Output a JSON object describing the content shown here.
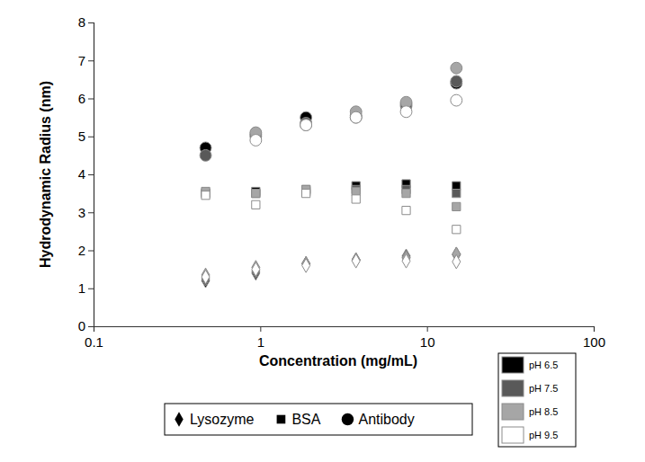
{
  "chart_data": {
    "type": "scatter",
    "log": "x",
    "grid": false,
    "legend": "bottom",
    "x_label": "Concentration (mg/mL)",
    "y_label": "Hydrodynamic Radius (nm)",
    "xlim": [
      0.1,
      100
    ],
    "xticks": [
      0.1,
      1,
      10,
      100
    ],
    "ylim": [
      0,
      8
    ],
    "yticks": [
      0,
      1,
      2,
      3,
      4,
      5,
      6,
      7,
      8
    ],
    "x": [
      0.47,
      0.94,
      1.88,
      3.75,
      7.5,
      15
    ],
    "groups": [
      {
        "name": "Lysozyme",
        "marker": "diamond",
        "series": [
          {
            "name": "pH 6.5",
            "color": "#000000",
            "values": [
              1.2,
              1.4,
              1.65,
              1.75,
              1.85,
              1.9
            ]
          },
          {
            "name": "pH 7.5",
            "color": "#595959",
            "values": [
              1.25,
              1.45,
              1.65,
              1.75,
              1.82,
              1.88
            ]
          },
          {
            "name": "pH 8.5",
            "color": "#a6a6a6",
            "values": [
              1.35,
              1.55,
              1.65,
              1.75,
              1.8,
              1.9
            ]
          },
          {
            "name": "pH 9.5",
            "color": "#ffffff",
            "values": [
              1.3,
              1.5,
              1.6,
              1.72,
              1.72,
              1.7
            ]
          }
        ]
      },
      {
        "name": "BSA",
        "marker": "square",
        "series": [
          {
            "name": "pH 6.5",
            "color": "#000000",
            "values": [
              3.5,
              3.55,
              3.6,
              3.7,
              3.75,
              3.7
            ]
          },
          {
            "name": "pH 7.5",
            "color": "#595959",
            "values": [
              3.5,
              3.5,
              3.55,
              3.6,
              3.6,
              3.5
            ]
          },
          {
            "name": "pH 8.5",
            "color": "#a6a6a6",
            "values": [
              3.55,
              3.5,
              3.6,
              3.55,
              3.5,
              3.15
            ]
          },
          {
            "name": "pH 9.5",
            "color": "#ffffff",
            "values": [
              3.45,
              3.2,
              3.5,
              3.35,
              3.05,
              2.55
            ]
          }
        ]
      },
      {
        "name": "Antibody",
        "marker": "circle",
        "series": [
          {
            "name": "pH 6.5",
            "color": "#000000",
            "values": [
              4.7,
              5.0,
              5.5,
              5.5,
              5.8,
              6.4
            ]
          },
          {
            "name": "pH 7.5",
            "color": "#595959",
            "values": [
              4.5,
              5.05,
              5.35,
              5.55,
              5.85,
              6.45
            ]
          },
          {
            "name": "pH 8.5",
            "color": "#a6a6a6",
            "values": [
              null,
              5.1,
              5.3,
              5.65,
              5.9,
              6.8
            ]
          },
          {
            "name": "pH 9.5",
            "color": "#ffffff",
            "values": [
              null,
              4.9,
              5.3,
              5.5,
              5.65,
              5.95
            ]
          }
        ]
      }
    ]
  }
}
